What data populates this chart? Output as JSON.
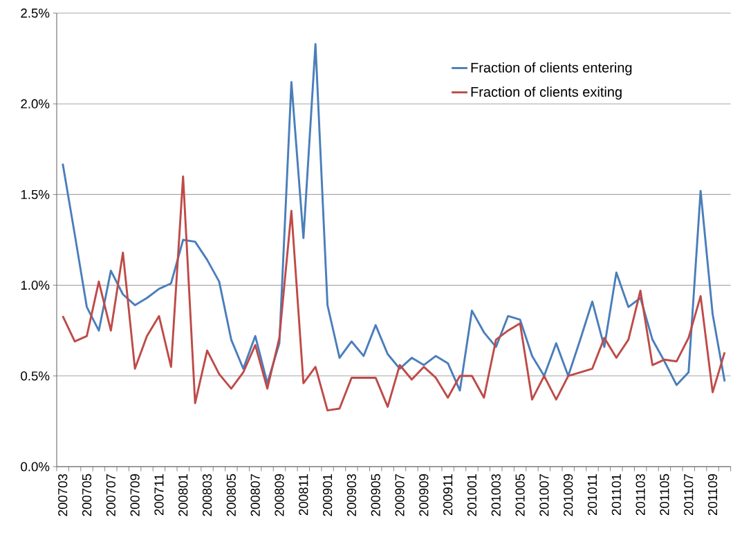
{
  "chart_data": {
    "type": "line",
    "categories": [
      "200703",
      null,
      "200705",
      null,
      "200707",
      null,
      "200709",
      null,
      "200711",
      null,
      "200801",
      null,
      "200803",
      null,
      "200805",
      null,
      "200807",
      null,
      "200809",
      null,
      "200811",
      null,
      "200901",
      null,
      "200903",
      null,
      "200905",
      null,
      "200907",
      null,
      "200909",
      null,
      "200911",
      null,
      "201001",
      null,
      "201003",
      null,
      "201005",
      null,
      "201007",
      null,
      "201009",
      null,
      "201011",
      null,
      "201101",
      null,
      "201103",
      null,
      "201105",
      null,
      "201107",
      null,
      "201109",
      null
    ],
    "series": [
      {
        "name": "Fraction of clients entering",
        "color": "#4a7ebb",
        "values": [
          1.67,
          1.28,
          0.88,
          0.75,
          1.08,
          0.95,
          0.89,
          0.93,
          0.98,
          1.01,
          1.25,
          1.24,
          1.14,
          1.02,
          0.7,
          0.54,
          0.72,
          0.46,
          0.68,
          2.12,
          1.26,
          2.33,
          0.89,
          0.6,
          0.69,
          0.61,
          0.78,
          0.62,
          0.54,
          0.6,
          0.56,
          0.61,
          0.57,
          0.42,
          0.86,
          0.74,
          0.66,
          0.83,
          0.81,
          0.61,
          0.5,
          0.68,
          0.5,
          0.7,
          0.91,
          0.66,
          1.07,
          0.88,
          0.93,
          0.7,
          0.58,
          0.45,
          0.52,
          1.52,
          0.84,
          0.47
        ]
      },
      {
        "name": "Fraction of clients exiting",
        "color": "#be4b48",
        "values": [
          0.83,
          0.69,
          0.72,
          1.02,
          0.75,
          1.18,
          0.54,
          0.72,
          0.83,
          0.55,
          1.6,
          0.35,
          0.64,
          0.51,
          0.43,
          0.52,
          0.67,
          0.43,
          0.71,
          1.41,
          0.46,
          0.55,
          0.31,
          0.32,
          0.49,
          0.49,
          0.49,
          0.33,
          0.56,
          0.48,
          0.55,
          0.49,
          0.38,
          0.5,
          0.5,
          0.38,
          0.7,
          0.75,
          0.79,
          0.37,
          0.5,
          0.37,
          0.5,
          0.52,
          0.54,
          0.71,
          0.6,
          0.7,
          0.97,
          0.56,
          0.59,
          0.58,
          0.71,
          0.94,
          0.41,
          0.63
        ]
      }
    ],
    "ylim": [
      0,
      2.5
    ],
    "yticks": [
      {
        "value": 0,
        "label": "0.0%"
      },
      {
        "value": 0.5,
        "label": "0.5%"
      },
      {
        "value": 1.0,
        "label": "1.0%"
      },
      {
        "value": 1.5,
        "label": "1.5%"
      },
      {
        "value": 2.0,
        "label": "2.0%"
      },
      {
        "value": 2.5,
        "label": "2.5%"
      }
    ],
    "grid": "y",
    "legend": "top right",
    "marker": "none",
    "line_style": "solid"
  }
}
